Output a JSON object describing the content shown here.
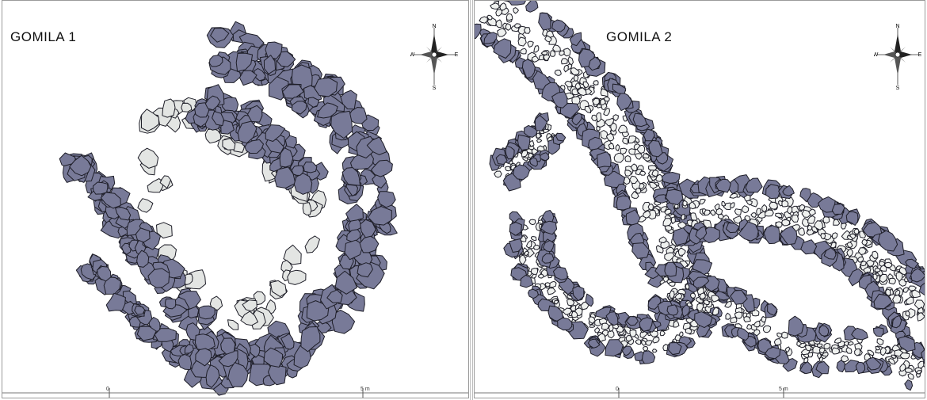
{
  "panels": [
    {
      "title": "GOMILA 1",
      "compass": {
        "n": "N",
        "s": "S",
        "e": "E",
        "w": "W"
      },
      "scale": {
        "start": "0",
        "end": "5 m"
      }
    },
    {
      "title": "GOMILA 2",
      "compass": {
        "n": "N",
        "s": "S",
        "e": "E",
        "w": "W"
      },
      "scale": {
        "start": "0",
        "end": "5 m"
      }
    }
  ],
  "colors": {
    "outer_stones": "#787a98",
    "inner_stones": "#e3e5e3",
    "fill_stones": "#eff1ef",
    "outline": "#1e1e28"
  }
}
